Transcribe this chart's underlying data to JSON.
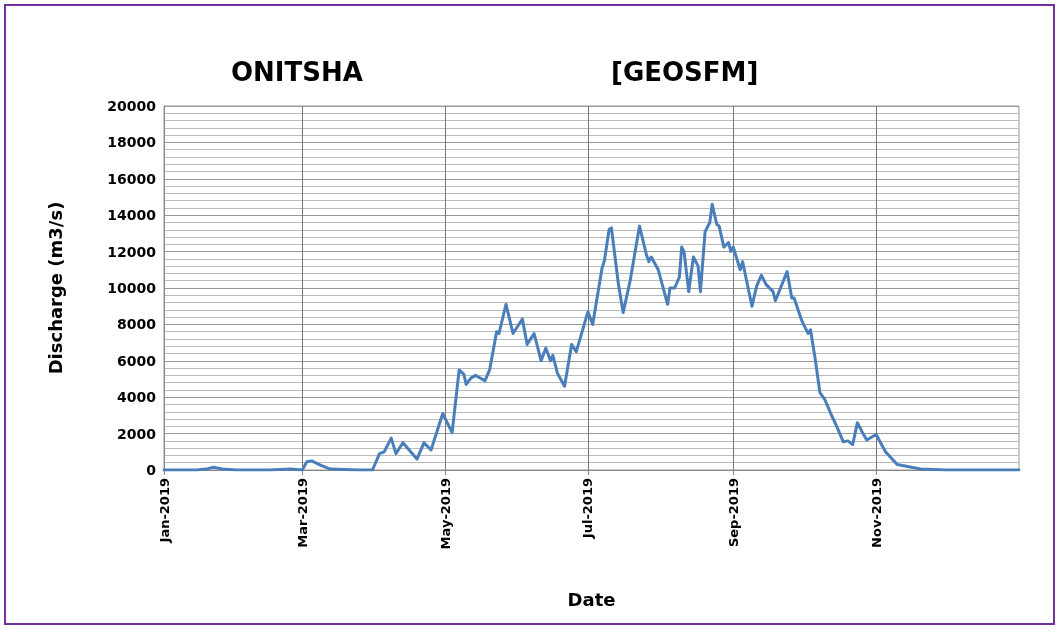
{
  "chart_data": {
    "type": "line",
    "title": "ONITSHA",
    "subtitle": "[GEOSFM]",
    "xlabel": "Date",
    "ylabel": "Discharge (m3/s)",
    "x": [
      "2019-01-01",
      "2019-01-15",
      "2019-01-19",
      "2019-01-22",
      "2019-01-26",
      "2019-02-01",
      "2019-02-15",
      "2019-02-24",
      "2019-03-01",
      "2019-03-03",
      "2019-03-05",
      "2019-03-09",
      "2019-03-13",
      "2019-03-25",
      "2019-03-31",
      "2019-04-03",
      "2019-04-05",
      "2019-04-08",
      "2019-04-10",
      "2019-04-13",
      "2019-04-19",
      "2019-04-22",
      "2019-04-25",
      "2019-04-30",
      "2019-05-04",
      "2019-05-07",
      "2019-05-09",
      "2019-05-10",
      "2019-05-12",
      "2019-05-14",
      "2019-05-18",
      "2019-05-20",
      "2019-05-23",
      "2019-05-24",
      "2019-05-27",
      "2019-05-30",
      "2019-06-03",
      "2019-06-05",
      "2019-06-08",
      "2019-06-11",
      "2019-06-13",
      "2019-06-15",
      "2019-06-16",
      "2019-06-18",
      "2019-06-21",
      "2019-06-24",
      "2019-06-26",
      "2019-07-01",
      "2019-07-03",
      "2019-07-07",
      "2019-07-08",
      "2019-07-10",
      "2019-07-11",
      "2019-07-14",
      "2019-07-16",
      "2019-07-19",
      "2019-07-23",
      "2019-07-26",
      "2019-07-27",
      "2019-07-28",
      "2019-07-31",
      "2019-08-04",
      "2019-08-05",
      "2019-08-07",
      "2019-08-09",
      "2019-08-10",
      "2019-08-11",
      "2019-08-13",
      "2019-08-15",
      "2019-08-17",
      "2019-08-18",
      "2019-08-20",
      "2019-08-22",
      "2019-08-23",
      "2019-08-25",
      "2019-08-26",
      "2019-08-28",
      "2019-08-30",
      "2019-08-31",
      "2019-09-01",
      "2019-09-04",
      "2019-09-05",
      "2019-09-09",
      "2019-09-11",
      "2019-09-13",
      "2019-09-15",
      "2019-09-18",
      "2019-09-19",
      "2019-09-24",
      "2019-09-26",
      "2019-09-27",
      "2019-09-30",
      "2019-10-01",
      "2019-10-03",
      "2019-10-04",
      "2019-10-06",
      "2019-10-08",
      "2019-10-10",
      "2019-10-13",
      "2019-10-15",
      "2019-10-18",
      "2019-10-20",
      "2019-10-22",
      "2019-10-24",
      "2019-10-26",
      "2019-10-28",
      "2019-11-01",
      "2019-11-05",
      "2019-11-10",
      "2019-11-20",
      "2019-12-01",
      "2020-01-01"
    ],
    "series": [
      {
        "color": "#4a7ebb",
        "values": [
          0,
          0,
          50,
          150,
          50,
          0,
          0,
          50,
          0,
          450,
          500,
          250,
          50,
          0,
          0,
          900,
          1000,
          1750,
          900,
          1500,
          600,
          1500,
          1100,
          3100,
          2050,
          5500,
          5250,
          4700,
          5050,
          5200,
          4900,
          5500,
          7600,
          7500,
          9100,
          7500,
          8300,
          6900,
          7500,
          6000,
          6700,
          6000,
          6300,
          5300,
          4600,
          6900,
          6500,
          8700,
          8000,
          11100,
          11500,
          13200,
          13300,
          10200,
          8650,
          10400,
          13400,
          11800,
          11450,
          11700,
          11000,
          9100,
          10000,
          10000,
          10600,
          12250,
          12000,
          9800,
          11700,
          11200,
          9800,
          13100,
          13600,
          14600,
          13500,
          13400,
          12250,
          12500,
          12000,
          12250,
          11000,
          11450,
          9000,
          10100,
          10700,
          10200,
          9800,
          9300,
          10900,
          9450,
          9450,
          8300,
          8000,
          7500,
          7700,
          6100,
          4250,
          3900,
          3000,
          2450,
          1550,
          1600,
          1400,
          2600,
          2100,
          1650,
          1950,
          1000,
          300,
          50,
          0,
          0
        ]
      }
    ],
    "xlim": [
      "2019-01-01",
      "2020-01-01"
    ],
    "xticks": [
      {
        "value": "2019-01-01",
        "label": "Jan-2019"
      },
      {
        "value": "2019-03-01",
        "label": "Mar-2019"
      },
      {
        "value": "2019-05-01",
        "label": "May-2019"
      },
      {
        "value": "2019-07-01",
        "label": "Jul-2019"
      },
      {
        "value": "2019-09-01",
        "label": "Sep-2019"
      },
      {
        "value": "2019-11-01",
        "label": "Nov-2019"
      }
    ],
    "ylim": [
      0,
      20000
    ],
    "yticks": [
      0,
      2000,
      4000,
      6000,
      8000,
      10000,
      12000,
      14000,
      16000,
      18000,
      20000
    ],
    "grid": true,
    "marker": "none",
    "line_style": "solid"
  }
}
